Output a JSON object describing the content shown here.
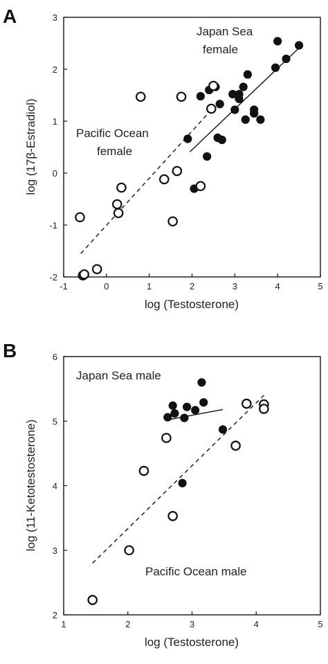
{
  "chart_data": [
    {
      "panel_label": "A",
      "type": "scatter",
      "xlabel": "log (Testosterone)",
      "ylabel": "log (17β-Estradiol)",
      "xlim": [
        -1,
        5
      ],
      "ylim": [
        -2,
        3
      ],
      "xticks": [
        -1,
        0,
        1,
        2,
        3,
        4,
        5
      ],
      "yticks": [
        -2,
        -1,
        0,
        1,
        2,
        3
      ],
      "annotations": [
        "Japan Sea",
        "female",
        "Pacific Ocean",
        "female"
      ],
      "series": [
        {
          "name": "Japan Sea female",
          "marker": "filled-circle",
          "points": [
            [
              1.9,
              0.66
            ],
            [
              2.05,
              -0.3
            ],
            [
              2.2,
              1.48
            ],
            [
              2.35,
              0.32
            ],
            [
              2.4,
              1.6
            ],
            [
              2.55,
              1.66
            ],
            [
              2.6,
              0.68
            ],
            [
              2.65,
              1.33
            ],
            [
              2.7,
              0.64
            ],
            [
              2.95,
              1.52
            ],
            [
              3.0,
              1.22
            ],
            [
              3.1,
              1.52
            ],
            [
              3.1,
              1.43
            ],
            [
              3.2,
              1.66
            ],
            [
              3.25,
              1.03
            ],
            [
              3.3,
              1.9
            ],
            [
              3.45,
              1.15
            ],
            [
              3.45,
              1.22
            ],
            [
              3.6,
              1.03
            ],
            [
              3.95,
              2.03
            ],
            [
              4.0,
              2.54
            ],
            [
              4.2,
              2.2
            ],
            [
              4.5,
              2.46
            ]
          ],
          "fit_line": {
            "style": "solid",
            "x": [
              1.95,
              4.5
            ],
            "y": [
              0.41,
              2.41
            ]
          }
        },
        {
          "name": "Pacific Ocean female",
          "marker": "open-circle",
          "points": [
            [
              -0.62,
              -0.85
            ],
            [
              -0.55,
              -1.97
            ],
            [
              -0.52,
              -1.95
            ],
            [
              -0.22,
              -1.85
            ],
            [
              0.25,
              -0.6
            ],
            [
              0.28,
              -0.77
            ],
            [
              0.35,
              -0.28
            ],
            [
              0.8,
              1.47
            ],
            [
              1.35,
              -0.12
            ],
            [
              1.55,
              -0.93
            ],
            [
              1.65,
              0.04
            ],
            [
              1.75,
              1.47
            ],
            [
              2.2,
              -0.25
            ],
            [
              2.45,
              1.24
            ],
            [
              2.5,
              1.68
            ]
          ],
          "fit_line": {
            "style": "dashed",
            "x": [
              -0.6,
              2.4
            ],
            "y": [
              -1.55,
              1.17
            ]
          }
        }
      ]
    },
    {
      "panel_label": "B",
      "type": "scatter",
      "xlabel": "log (Testosterone)",
      "ylabel": "log (11-Ketotestosterone)",
      "xlim": [
        1,
        5
      ],
      "ylim": [
        2,
        6
      ],
      "xticks": [
        1,
        2,
        3,
        4,
        5
      ],
      "yticks": [
        2,
        3,
        4,
        5,
        6
      ],
      "annotations": [
        "Japan Sea male",
        "Pacific Ocean male"
      ],
      "series": [
        {
          "name": "Japan Sea male",
          "marker": "filled-circle",
          "points": [
            [
              2.62,
              5.06
            ],
            [
              2.7,
              5.24
            ],
            [
              2.73,
              5.12
            ],
            [
              2.85,
              4.04
            ],
            [
              2.88,
              5.05
            ],
            [
              2.92,
              5.22
            ],
            [
              3.05,
              5.17
            ],
            [
              3.15,
              5.6
            ],
            [
              3.18,
              5.29
            ],
            [
              3.48,
              4.87
            ]
          ],
          "fit_line": {
            "style": "solid",
            "x": [
              2.62,
              3.48
            ],
            "y": [
              5.02,
              5.18
            ]
          }
        },
        {
          "name": "Pacific Ocean male",
          "marker": "open-circle",
          "points": [
            [
              1.45,
              2.23
            ],
            [
              2.02,
              3.0
            ],
            [
              2.25,
              4.23
            ],
            [
              2.6,
              4.74
            ],
            [
              2.7,
              3.53
            ],
            [
              3.68,
              4.62
            ],
            [
              3.85,
              5.27
            ],
            [
              4.12,
              5.26
            ],
            [
              4.12,
              5.19
            ]
          ],
          "fit_line": {
            "style": "dashed",
            "x": [
              1.45,
              4.12
            ],
            "y": [
              2.8,
              5.4
            ]
          }
        }
      ]
    }
  ]
}
